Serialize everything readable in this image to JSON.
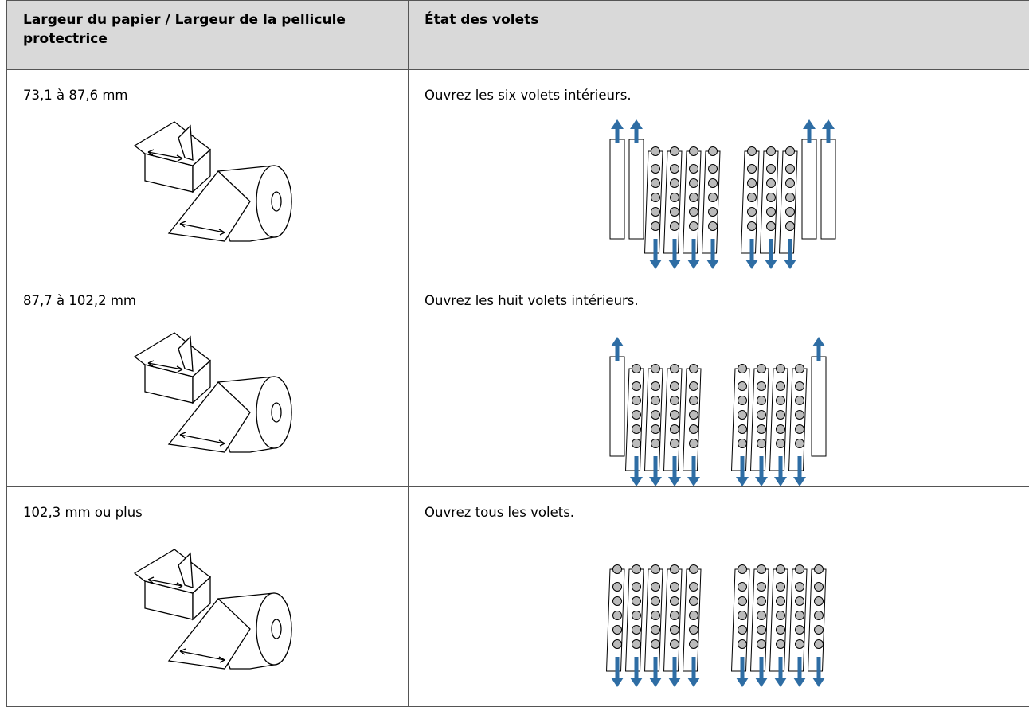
{
  "table": {
    "header": [
      "Largeur du papier / Largeur de la pellicule protectrice",
      "État des volets"
    ],
    "rows": [
      [
        "73,1 à 87,6 mm",
        "Ouvrez les six volets intérieurs."
      ],
      [
        "87,7 à 102,2 mm",
        "Ouvrez les huit volets intérieurs."
      ],
      [
        "102,3 mm ou plus",
        "Ouvrez tous les volets."
      ]
    ]
  }
}
